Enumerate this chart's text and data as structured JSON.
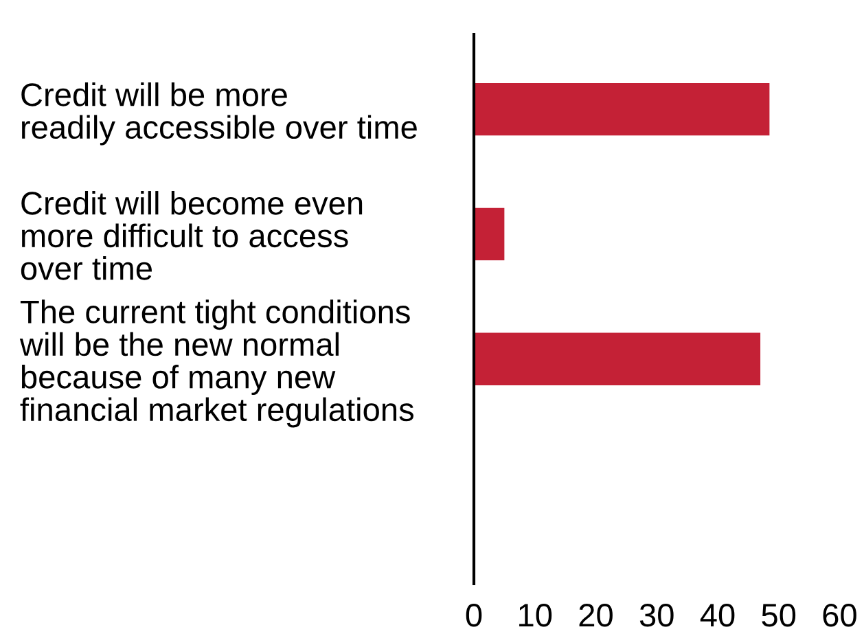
{
  "chart_data": {
    "type": "bar",
    "orientation": "horizontal",
    "categories": [
      "Credit will be more\nreadily accessible over time",
      "Credit will become even\nmore difficult to access\nover time",
      "The current tight conditions\nwill be the new normal\nbecause of many new\nfinancial market regulations"
    ],
    "values": [
      48.5,
      5,
      47
    ],
    "color": "#c42136",
    "xlim": [
      0,
      60
    ],
    "xticks": [
      0,
      10,
      20,
      30,
      40,
      50,
      60
    ],
    "grid": false,
    "legend": false
  }
}
